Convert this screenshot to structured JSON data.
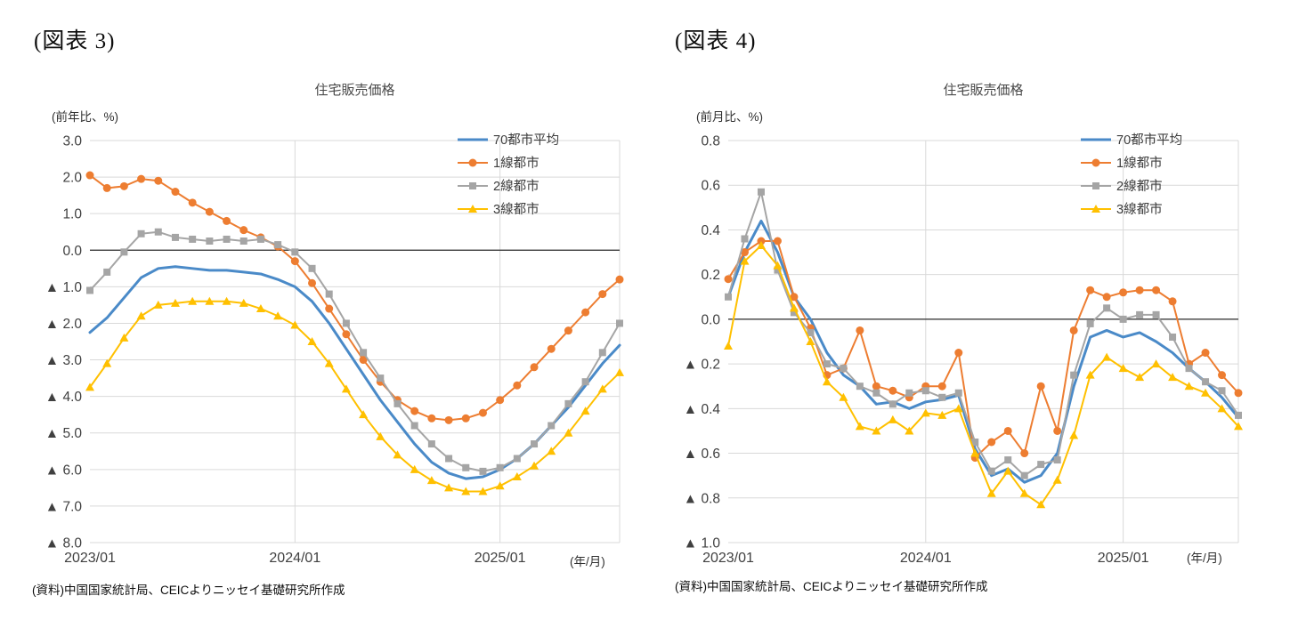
{
  "figures": [
    {
      "label": "(図表 3)",
      "title": "住宅販売価格",
      "unit_label": "(前年比、%)",
      "axis_note": "(年/月)",
      "source_note": "(資料)中国国家統計局、CEICよりニッセイ基礎研究所作成"
    },
    {
      "label": "(図表 4)",
      "title": "住宅販売価格",
      "unit_label": "(前月比、%)",
      "axis_note": "(年/月)",
      "source_note": "(資料)中国国家統計局、CEICよりニッセイ基礎研究所作成"
    }
  ],
  "chart_data": [
    {
      "type": "line",
      "title": "住宅販売価格",
      "ylabel": "(前年比、%)",
      "xlabel": "(年/月)",
      "ylim": [
        -8.0,
        3.0
      ],
      "ytick_step": 1.0,
      "grid": true,
      "legend_position": "top-right",
      "xticks": [
        "2023/01",
        "2024/01",
        "2025/01"
      ],
      "x": [
        "2023/01",
        "2023/02",
        "2023/03",
        "2023/04",
        "2023/05",
        "2023/06",
        "2023/07",
        "2023/08",
        "2023/09",
        "2023/10",
        "2023/11",
        "2023/12",
        "2024/01",
        "2024/02",
        "2024/03",
        "2024/04",
        "2024/05",
        "2024/06",
        "2024/07",
        "2024/08",
        "2024/09",
        "2024/10",
        "2024/11",
        "2024/12",
        "2025/01",
        "2025/02",
        "2025/03",
        "2025/04",
        "2025/05",
        "2025/06",
        "2025/07",
        "2025/08"
      ],
      "series": [
        {
          "name": "70都市平均",
          "color": "#4A8AC8",
          "marker": "none",
          "values": [
            -2.25,
            -1.85,
            -1.3,
            -0.75,
            -0.5,
            -0.45,
            -0.5,
            -0.55,
            -0.55,
            -0.6,
            -0.65,
            -0.8,
            -1.0,
            -1.4,
            -2.0,
            -2.7,
            -3.4,
            -4.1,
            -4.7,
            -5.3,
            -5.8,
            -6.1,
            -6.25,
            -6.2,
            -6.0,
            -5.7,
            -5.3,
            -4.8,
            -4.3,
            -3.7,
            -3.1,
            -2.6
          ]
        },
        {
          "name": "1線都市",
          "color": "#ED7D31",
          "marker": "circle",
          "values": [
            2.05,
            1.7,
            1.75,
            1.95,
            1.9,
            1.6,
            1.3,
            1.05,
            0.8,
            0.55,
            0.35,
            0.1,
            -0.3,
            -0.9,
            -1.6,
            -2.3,
            -3.0,
            -3.6,
            -4.1,
            -4.4,
            -4.6,
            -4.65,
            -4.6,
            -4.45,
            -4.1,
            -3.7,
            -3.2,
            -2.7,
            -2.2,
            -1.7,
            -1.2,
            -0.8
          ]
        },
        {
          "name": "2線都市",
          "color": "#A5A5A5",
          "marker": "square",
          "values": [
            -1.1,
            -0.6,
            -0.05,
            0.45,
            0.5,
            0.35,
            0.3,
            0.25,
            0.3,
            0.25,
            0.3,
            0.15,
            -0.05,
            -0.5,
            -1.2,
            -2.0,
            -2.8,
            -3.5,
            -4.2,
            -4.8,
            -5.3,
            -5.7,
            -5.95,
            -6.05,
            -5.95,
            -5.7,
            -5.3,
            -4.8,
            -4.2,
            -3.6,
            -2.8,
            -2.0
          ]
        },
        {
          "name": "3線都市",
          "color": "#FFC000",
          "marker": "triangle",
          "values": [
            -3.75,
            -3.1,
            -2.4,
            -1.8,
            -1.5,
            -1.45,
            -1.4,
            -1.4,
            -1.4,
            -1.45,
            -1.6,
            -1.8,
            -2.05,
            -2.5,
            -3.1,
            -3.8,
            -4.5,
            -5.1,
            -5.6,
            -6.0,
            -6.3,
            -6.5,
            -6.6,
            -6.6,
            -6.45,
            -6.2,
            -5.9,
            -5.5,
            -5.0,
            -4.4,
            -3.8,
            -3.35
          ]
        }
      ]
    },
    {
      "type": "line",
      "title": "住宅販売価格",
      "ylabel": "(前月比、%)",
      "xlabel": "(年/月)",
      "ylim": [
        -1.0,
        0.8
      ],
      "ytick_step": 0.2,
      "grid": true,
      "legend_position": "top-right",
      "xticks": [
        "2023/01",
        "2024/01",
        "2025/01"
      ],
      "x": [
        "2023/01",
        "2023/02",
        "2023/03",
        "2023/04",
        "2023/05",
        "2023/06",
        "2023/07",
        "2023/08",
        "2023/09",
        "2023/10",
        "2023/11",
        "2023/12",
        "2024/01",
        "2024/02",
        "2024/03",
        "2024/04",
        "2024/05",
        "2024/06",
        "2024/07",
        "2024/08",
        "2024/09",
        "2024/10",
        "2024/11",
        "2024/12",
        "2025/01",
        "2025/02",
        "2025/03",
        "2025/04",
        "2025/05",
        "2025/06",
        "2025/07",
        "2025/08"
      ],
      "series": [
        {
          "name": "70都市平均",
          "color": "#4A8AC8",
          "marker": "none",
          "values": [
            0.1,
            0.3,
            0.44,
            0.3,
            0.1,
            0.0,
            -0.15,
            -0.25,
            -0.3,
            -0.38,
            -0.37,
            -0.4,
            -0.37,
            -0.36,
            -0.34,
            -0.58,
            -0.7,
            -0.67,
            -0.73,
            -0.7,
            -0.6,
            -0.3,
            -0.08,
            -0.05,
            -0.08,
            -0.06,
            -0.1,
            -0.15,
            -0.22,
            -0.28,
            -0.35,
            -0.44
          ]
        },
        {
          "name": "1線都市",
          "color": "#ED7D31",
          "marker": "circle",
          "values": [
            0.18,
            0.3,
            0.35,
            0.35,
            0.1,
            -0.04,
            -0.25,
            -0.22,
            -0.05,
            -0.3,
            -0.32,
            -0.35,
            -0.3,
            -0.3,
            -0.15,
            -0.62,
            -0.55,
            -0.5,
            -0.6,
            -0.3,
            -0.5,
            -0.05,
            0.13,
            0.1,
            0.12,
            0.13,
            0.13,
            0.08,
            -0.2,
            -0.15,
            -0.25,
            -0.33
          ]
        },
        {
          "name": "2線都市",
          "color": "#A5A5A5",
          "marker": "square",
          "values": [
            0.1,
            0.36,
            0.57,
            0.22,
            0.03,
            -0.06,
            -0.2,
            -0.22,
            -0.3,
            -0.33,
            -0.38,
            -0.33,
            -0.32,
            -0.35,
            -0.33,
            -0.55,
            -0.68,
            -0.63,
            -0.7,
            -0.65,
            -0.63,
            -0.25,
            -0.02,
            0.05,
            0.0,
            0.02,
            0.02,
            -0.08,
            -0.22,
            -0.28,
            -0.32,
            -0.43
          ]
        },
        {
          "name": "3線都市",
          "color": "#FFC000",
          "marker": "triangle",
          "values": [
            -0.12,
            0.26,
            0.33,
            0.24,
            0.05,
            -0.1,
            -0.28,
            -0.35,
            -0.48,
            -0.5,
            -0.45,
            -0.5,
            -0.42,
            -0.43,
            -0.4,
            -0.6,
            -0.78,
            -0.68,
            -0.78,
            -0.83,
            -0.72,
            -0.52,
            -0.25,
            -0.17,
            -0.22,
            -0.26,
            -0.2,
            -0.26,
            -0.3,
            -0.33,
            -0.4,
            -0.48
          ]
        }
      ]
    }
  ],
  "style": {
    "gridline_color": "#D9D9D9",
    "zero_line_color": "#2B2B2B",
    "tick_label_color": "#404040",
    "negative_prefix": "▲"
  }
}
